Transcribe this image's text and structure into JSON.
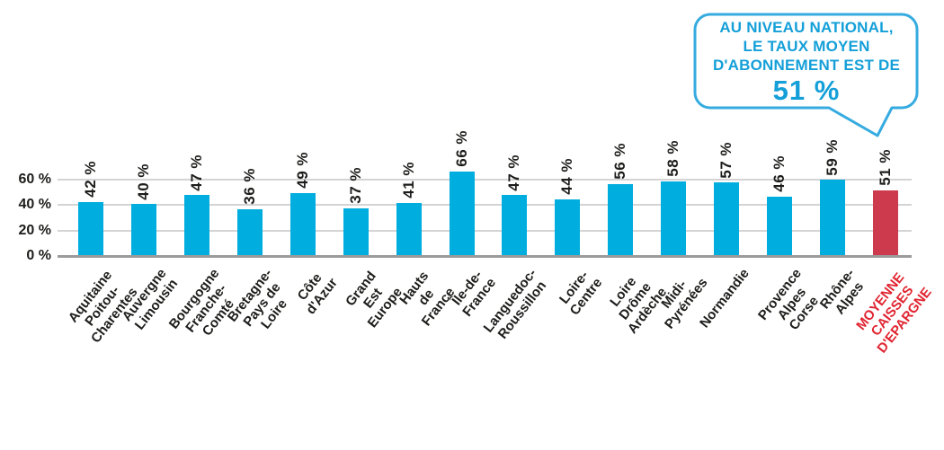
{
  "chart_data": {
    "type": "bar",
    "title": "",
    "xlabel": "",
    "ylabel": "",
    "unit": "%",
    "categories": [
      "Aquitaine\nPoitou-Charentes",
      "Auvergne Limousin",
      "Bourgogne\nFranche-Comté",
      "Bretagne-Pays de Loire",
      "Côte d'Azur",
      "Grand Est Europe",
      "Hauts de France",
      "Île-de-France",
      "Languedoc-\nRoussillon",
      "Loire-Centre",
      "Loire Drôme\nArdèche",
      "Midi-Pyrénées",
      "Normandie",
      "Provence Alpes Corse",
      "Rhône-Alpes",
      "MOYENNE\nCAISSES D'EPARGNE"
    ],
    "values": [
      42,
      40,
      47,
      36,
      49,
      37,
      41,
      66,
      47,
      44,
      56,
      58,
      57,
      46,
      59,
      51
    ],
    "value_label_suffix": " %",
    "ylim": [
      0,
      70
    ],
    "yticks": [
      {
        "label": "60 %",
        "value": 60
      },
      {
        "label": "40 %",
        "value": 40
      },
      {
        "label": "20 %",
        "value": 20
      },
      {
        "label": "0 %",
        "value": 0
      }
    ],
    "grid": true,
    "legend": "none",
    "bar_color": "#00addf",
    "highlight_index": 15,
    "highlight_bar_color": "#cd3a4d",
    "highlight_label_color": "#e02531"
  },
  "callout": {
    "line1": "AU NIVEAU NATIONAL,",
    "line2": "LE TAUX MOYEN",
    "line3": "D'ABONNEMENT EST DE",
    "value": "51 %",
    "text_color": "#149fd8",
    "border_color": "#35abe0"
  }
}
